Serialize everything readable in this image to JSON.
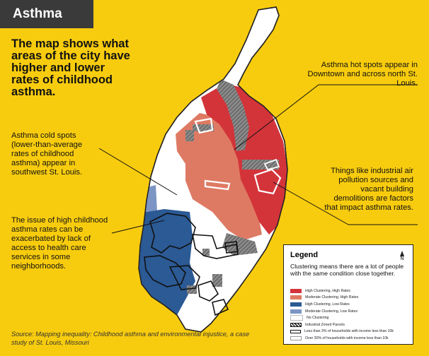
{
  "title": "Asthma",
  "headline": "The map shows what areas of the city have higher and lower rates of childhood asthma.",
  "annotations": {
    "hotspots": "Asthma hot spots appear in Downtown and across north St. Louis.",
    "coldspots": "Asthma cold spots (lower-than-average rates of childhood asthma) appear in southwest St. Louis.",
    "industrial": "Things like industrial air pollution sources and vacant building demolitions are factors that impact asthma rates.",
    "access": "The issue of high childhood asthma rates can be exacerbated by lack of access to health care services in some neighborhoods."
  },
  "source": "Source: Mapping inequality: Childhood asthma and environmental injustice, a case study of St. Louis, Missouri",
  "legend": {
    "title": "Legend",
    "north_label": "N",
    "subtitle": "Clustering means there are a lot of people with the same condition close together.",
    "items": [
      {
        "label": "High Clustering, High Rates",
        "color": "#D3343A",
        "style": "fill"
      },
      {
        "label": "Moderate Clustering, High Rates",
        "color": "#DE7A63",
        "style": "fill"
      },
      {
        "label": "High Clustering, Low Rates",
        "color": "#2B5A95",
        "style": "fill"
      },
      {
        "label": "Moderate Clustering, Low Rates",
        "color": "#7C95C4",
        "style": "fill"
      },
      {
        "label": "No Clustering",
        "color": "#FFFFFF",
        "style": "fill"
      },
      {
        "label": "Industrial Zoned Parcels",
        "color": "#555555",
        "style": "hatch"
      },
      {
        "label": "Less than 3% of households with income less than 10k",
        "color": "#111111",
        "style": "outline-black"
      },
      {
        "label": "Over 30% of households with income less than 10k",
        "color": "#FFFFFF",
        "style": "outline-white"
      }
    ]
  },
  "colors": {
    "background": "#F8CC0E",
    "high_high": "#D3343A",
    "moderate_high": "#DE7A63",
    "high_low": "#2B5A95",
    "moderate_low": "#7C95C4",
    "industrial": "#707070"
  }
}
